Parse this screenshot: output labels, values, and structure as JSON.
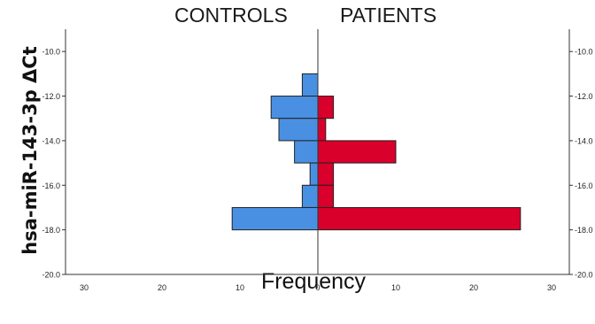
{
  "chart_data": {
    "type": "bar",
    "orientation": "horizontal",
    "layout": "population-pyramid",
    "left_group": "CONTROLS",
    "right_group": "PATIENTS",
    "xlabel": "Frequency",
    "ylabel": "hsa-miR-143-3p ΔCt",
    "xlim": [
      0,
      30
    ],
    "x_ticks": [
      30,
      20,
      10,
      0,
      10,
      20,
      30
    ],
    "ylim": [
      -20,
      -9
    ],
    "y_ticks": [
      "-10.0",
      "-12.0",
      "-14.0",
      "-16.0",
      "-18.0",
      "-20.0"
    ],
    "bin_width": 1,
    "bins": [
      {
        "from": -12,
        "to": -11,
        "controls": 2,
        "patients": 0
      },
      {
        "from": -13,
        "to": -12,
        "controls": 6,
        "patients": 2
      },
      {
        "from": -14,
        "to": -13,
        "controls": 5,
        "patients": 1
      },
      {
        "from": -15,
        "to": -14,
        "controls": 3,
        "patients": 10
      },
      {
        "from": -16,
        "to": -15,
        "controls": 1,
        "patients": 2
      },
      {
        "from": -17,
        "to": -16,
        "controls": 2,
        "patients": 2
      },
      {
        "from": -18,
        "to": -17,
        "controls": 11,
        "patients": 26
      }
    ],
    "colors": {
      "controls": "#4a90e2",
      "patients": "#d9002b",
      "axis": "#333333",
      "bar_edge": "#222222"
    },
    "grid": false
  }
}
